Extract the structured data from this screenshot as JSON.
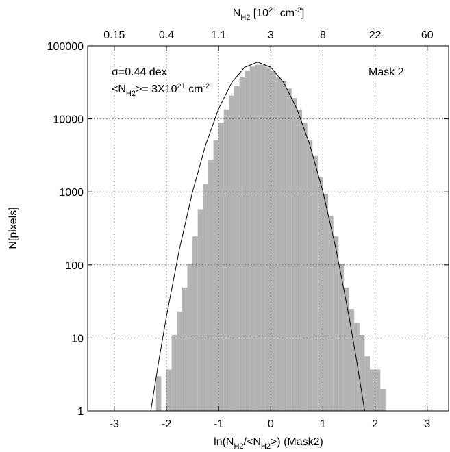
{
  "chart_data": {
    "type": "histogram",
    "xlabel": [
      "ln(N",
      "H2",
      "/<N",
      "H2",
      ">) (Mask2)"
    ],
    "ylabel": "N[pixels]",
    "x2label": [
      "N",
      "H2",
      " [10",
      "21",
      " cm",
      "-2",
      "]"
    ],
    "annotations": {
      "sigma": "σ=0.44 dex",
      "mean": [
        "<N",
        "H2",
        ">= 3X10",
        "21",
        " cm",
        "-2"
      ],
      "mask": "Mask 2"
    },
    "bins": [
      -2.2,
      -2.1,
      -2.0,
      -1.9,
      -1.8,
      -1.7,
      -1.6,
      -1.5,
      -1.4,
      -1.3,
      -1.2,
      -1.1,
      -1.0,
      -0.9,
      -0.8,
      -0.7,
      -0.6,
      -0.5,
      -0.4,
      -0.3,
      -0.2,
      -0.1,
      0.0,
      0.1,
      0.2,
      0.3,
      0.4,
      0.5,
      0.6,
      0.7,
      0.8,
      0.9,
      1.0,
      1.1,
      1.2,
      1.3,
      1.4,
      1.5,
      1.6,
      1.7,
      1.8,
      1.9,
      2.0,
      2.1,
      2.2
    ],
    "values": [
      3,
      1,
      3.7,
      11,
      23,
      49,
      104,
      246,
      580,
      1300,
      2700,
      5100,
      8700,
      13500,
      20800,
      28000,
      37000,
      45000,
      52000,
      55000,
      55000,
      51000,
      45000,
      37000,
      33000,
      26000,
      19300,
      13500,
      8700,
      5100,
      3100,
      1600,
      940,
      470,
      246,
      104,
      49,
      25,
      16,
      11,
      5.6,
      3.7,
      3.7,
      2
    ],
    "color": "#b3b3b3",
    "curve": {
      "x": [
        -2.3,
        -2.15,
        -2.0,
        -1.75,
        -1.5,
        -1.25,
        -1.0,
        -0.75,
        -0.5,
        -0.25,
        0.0,
        0.25,
        0.5,
        0.75,
        1.0,
        1.25,
        1.5,
        1.65,
        1.8
      ],
      "values": [
        1.0,
        4.7,
        19.8,
        166,
        1004,
        4376,
        13766,
        31180,
        50940,
        60000,
        50940,
        31180,
        13766,
        4376,
        1004,
        166,
        19.8,
        4.7,
        1.0
      ],
      "color": "#000000"
    },
    "xlim": [
      -3.51,
      3.41
    ],
    "xticks": [
      -3,
      -2,
      -1,
      0,
      1,
      2,
      3
    ],
    "x2ticks": [
      {
        "value": -3,
        "label": "0.15"
      },
      {
        "value": -2,
        "label": "0.4"
      },
      {
        "value": -1,
        "label": "1.1"
      },
      {
        "value": 0,
        "label": "3"
      },
      {
        "value": 1,
        "label": "8"
      },
      {
        "value": 2,
        "label": "22"
      },
      {
        "value": 3,
        "label": "60"
      }
    ],
    "ylim": [
      1,
      100000
    ],
    "yticks": [
      1,
      10,
      100,
      1000,
      10000,
      100000
    ],
    "ylog": true,
    "grid": true
  }
}
